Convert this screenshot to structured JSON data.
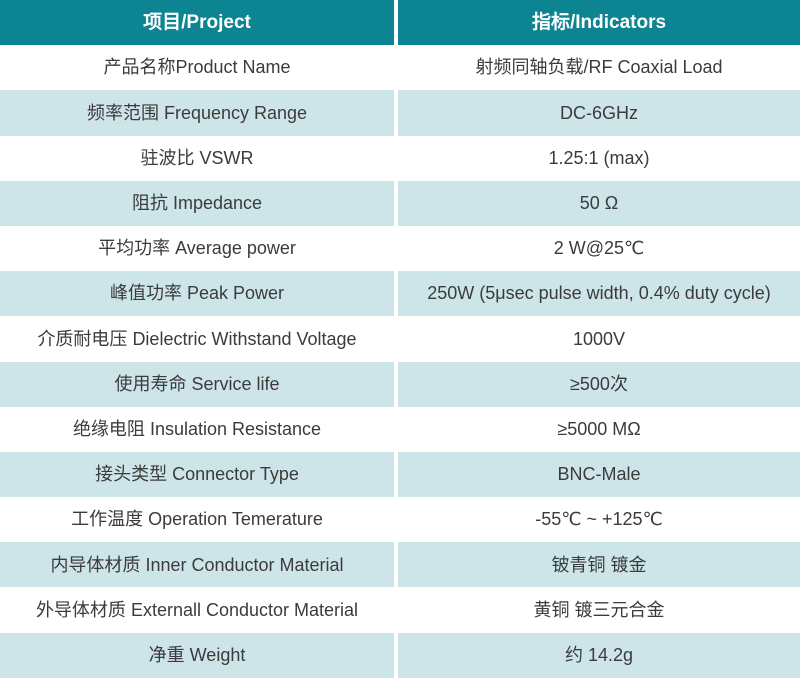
{
  "table": {
    "header": {
      "project": "项目/Project",
      "indicators": "指标/Indicators"
    },
    "rows": [
      {
        "project": "产品名称Product Name",
        "indicator": "射频同轴负载/RF Coaxial Load"
      },
      {
        "project": "频率范围 Frequency Range",
        "indicator": "DC-6GHz"
      },
      {
        "project": "驻波比 VSWR",
        "indicator": "1.25:1 (max)"
      },
      {
        "project": "阻抗 Impedance",
        "indicator": "50 Ω"
      },
      {
        "project": "平均功率 Average power",
        "indicator": "2 W@25℃"
      },
      {
        "project": "峰值功率 Peak Power",
        "indicator": "250W (5μsec pulse width, 0.4% duty cycle)"
      },
      {
        "project": "介质耐电压 Dielectric Withstand Voltage",
        "indicator": "1000V"
      },
      {
        "project": "使用寿命 Service life",
        "indicator": "≥500次"
      },
      {
        "project": "绝缘电阻 Insulation Resistance",
        "indicator": "≥5000 MΩ"
      },
      {
        "project": "接头类型 Connector Type",
        "indicator": "BNC-Male"
      },
      {
        "project": "工作温度 Operation Temerature",
        "indicator": "-55℃ ~ +125℃"
      },
      {
        "project": "内导体材质 Inner Conductor Material",
        "indicator": "铍青铜 镀金"
      },
      {
        "project": "外导体材质 Externall Conductor Material",
        "indicator": "黄铜 镀三元合金"
      },
      {
        "project": "净重 Weight",
        "indicator": "约 14.2g"
      }
    ]
  },
  "colors": {
    "header_bg": "#0c8492",
    "header_text": "#ffffff",
    "stripe_bg": "#cde5e9",
    "row_bg": "#ffffff",
    "text": "#3b3b3b",
    "divider": "#ffffff"
  }
}
